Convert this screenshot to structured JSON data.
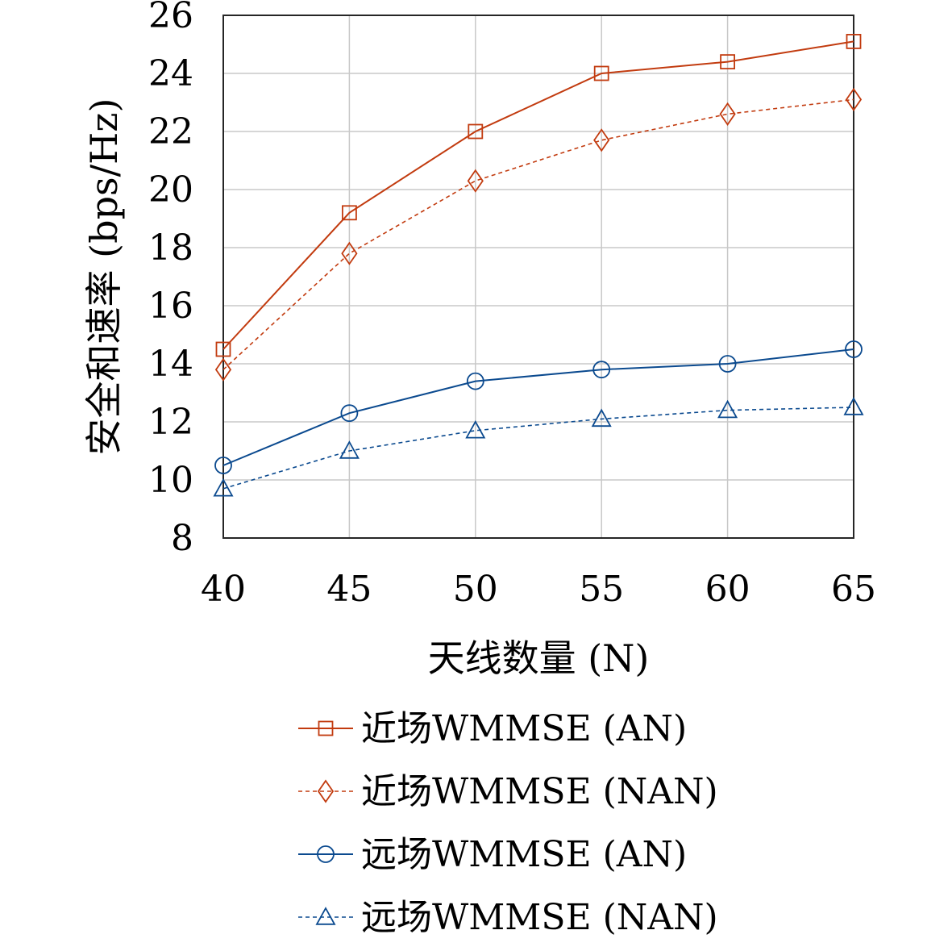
{
  "chart_data": {
    "type": "line",
    "xlabel": "天线数量 (N)",
    "ylabel": "安全和速率 (bps/Hz)",
    "x": [
      40,
      45,
      50,
      55,
      60,
      65
    ],
    "xlim": [
      40,
      65
    ],
    "ylim": [
      8,
      26
    ],
    "xticks": [
      "40",
      "45",
      "50",
      "55",
      "60",
      "65"
    ],
    "yticks": [
      "8",
      "10",
      "12",
      "14",
      "16",
      "18",
      "20",
      "22",
      "24",
      "26"
    ],
    "grid": true,
    "legend_position": "below",
    "series": [
      {
        "name": "近场WMMSE (AN)",
        "values": [
          14.5,
          19.2,
          22.0,
          24.0,
          24.4,
          25.1
        ],
        "color": "#c23b0f",
        "dash": "solid",
        "marker": "square"
      },
      {
        "name": "近场WMMSE (NAN)",
        "values": [
          13.8,
          17.8,
          20.3,
          21.7,
          22.6,
          23.1
        ],
        "color": "#c23b0f",
        "dash": "dashed",
        "marker": "diamond"
      },
      {
        "name": "远场WMMSE (AN)",
        "values": [
          10.5,
          12.3,
          13.4,
          13.8,
          14.0,
          14.5
        ],
        "color": "#0b4a8f",
        "dash": "solid",
        "marker": "circle"
      },
      {
        "name": "远场WMMSE (NAN)",
        "values": [
          9.7,
          11.0,
          11.7,
          12.1,
          12.4,
          12.5
        ],
        "color": "#0b4a8f",
        "dash": "dashed",
        "marker": "triangle"
      }
    ]
  }
}
